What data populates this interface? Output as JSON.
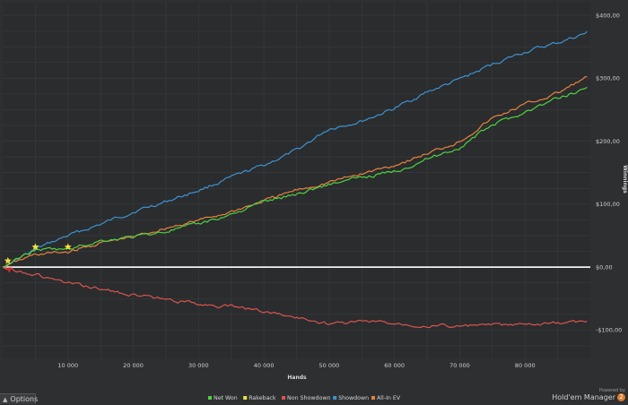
{
  "chart_data": {
    "type": "line",
    "xlabel": "Hands",
    "ylabel": "Winnings",
    "xlim": [
      0,
      90000
    ],
    "ylim": [
      -145,
      420
    ],
    "x_ticks": [
      10000,
      20000,
      30000,
      40000,
      50000,
      60000,
      70000,
      80000
    ],
    "x_tick_labels": [
      "10 000",
      "20 000",
      "30 000",
      "40 000",
      "50 000",
      "60 000",
      "70 000",
      "80 000"
    ],
    "y_ticks": [
      400,
      300,
      200,
      100,
      0,
      -100
    ],
    "y_tick_labels": [
      "$400,00",
      "$300,00",
      "$200,00",
      "$100,00",
      "$0,00",
      "-$100,00"
    ],
    "grid": true,
    "legend_position": "bottom",
    "series": [
      {
        "name": "Showdown",
        "color": "#3d93d1",
        "x": [
          0,
          5000,
          10000,
          15000,
          20000,
          25000,
          30000,
          35000,
          40000,
          45000,
          50000,
          55000,
          60000,
          65000,
          70000,
          75000,
          80000,
          85000,
          89500
        ],
        "y": [
          0,
          28,
          50,
          68,
          88,
          104,
          122,
          142,
          162,
          185,
          220,
          232,
          252,
          278,
          298,
          322,
          342,
          356,
          372
        ]
      },
      {
        "name": "All-In EV",
        "color": "#e8823d",
        "x": [
          0,
          5000,
          10000,
          15000,
          20000,
          25000,
          30000,
          35000,
          40000,
          45000,
          50000,
          55000,
          60000,
          65000,
          70000,
          75000,
          80000,
          85000,
          89500
        ],
        "y": [
          0,
          20,
          24,
          38,
          48,
          62,
          74,
          88,
          105,
          122,
          135,
          148,
          162,
          180,
          200,
          236,
          258,
          276,
          302
        ]
      },
      {
        "name": "Net Won",
        "color": "#4fd23f",
        "x": [
          0,
          5000,
          10000,
          15000,
          20000,
          25000,
          30000,
          35000,
          40000,
          45000,
          50000,
          55000,
          60000,
          65000,
          70000,
          75000,
          80000,
          85000,
          89500
        ],
        "y": [
          0,
          28,
          28,
          42,
          48,
          57,
          68,
          84,
          104,
          116,
          132,
          142,
          152,
          172,
          190,
          226,
          246,
          268,
          285
        ]
      },
      {
        "name": "Rakeback",
        "color": "#e6e63c",
        "x": [
          0,
          5000,
          10000,
          15000,
          20000,
          25000,
          30000,
          35000,
          40000,
          45000,
          50000,
          55000,
          60000,
          65000,
          70000,
          75000,
          80000,
          85000,
          89500
        ],
        "y": [
          0,
          0,
          0,
          0,
          0,
          0,
          0,
          0,
          0,
          0,
          0,
          0,
          0,
          0,
          0,
          0,
          0,
          0,
          0
        ]
      },
      {
        "name": "Non Showdown",
        "color": "#d9554d",
        "x": [
          0,
          5000,
          10000,
          15000,
          20000,
          25000,
          30000,
          35000,
          40000,
          45000,
          50000,
          55000,
          60000,
          65000,
          70000,
          75000,
          80000,
          85000,
          89500
        ],
        "y": [
          0,
          -12,
          -26,
          -35,
          -44,
          -52,
          -58,
          -63,
          -70,
          -80,
          -90,
          -86,
          -89,
          -92,
          -94,
          -92,
          -92,
          -90,
          -86
        ]
      }
    ],
    "star_markers": {
      "color": "#f5e03a",
      "x": [
        800,
        5000,
        10000
      ],
      "y": [
        10,
        32,
        32
      ]
    },
    "down_marker": {
      "color": "#d0272b",
      "x": 1000,
      "y": -5
    }
  },
  "legend": [
    {
      "label": "Net Won",
      "color": "#4fd23f"
    },
    {
      "label": "Rakeback",
      "color": "#e6e63c"
    },
    {
      "label": "Non Showdown",
      "color": "#d9554d"
    },
    {
      "label": "Showdown",
      "color": "#3d93d1"
    },
    {
      "label": "All-In EV",
      "color": "#e8823d"
    }
  ],
  "options_label": "Options",
  "brand": {
    "powered": "Powered by",
    "name": "Hold'em Manager",
    "logo": "2"
  }
}
